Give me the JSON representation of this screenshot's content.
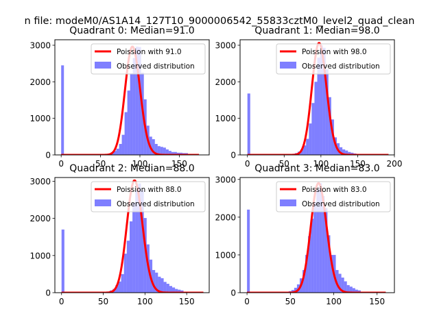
{
  "figure": {
    "suptitle": "n file: modeM0/AS1A14_127T10_9000006542_55833cztM0_level2_quad_clean",
    "colors": {
      "histogram": "#0000ff",
      "poisson_line": "#ff0000",
      "axes": "#000000",
      "background": "#ffffff"
    }
  },
  "chart_data": [
    {
      "type": "bar",
      "title": "Quadrant 0: Median=91.0",
      "xlabel": "",
      "ylabel": "",
      "xlim": [
        -8,
        188
      ],
      "ylim": [
        0,
        3150
      ],
      "xticks": [
        0,
        50,
        100,
        150
      ],
      "yticks": [
        0,
        1000,
        2000,
        3000
      ],
      "grid": false,
      "legend_position": "top-right",
      "bin_width": 3.5,
      "series": [
        {
          "name": "Observed distribution",
          "x": [
            0,
            56,
            59.5,
            63,
            66.5,
            70,
            73.5,
            77,
            80.5,
            84,
            87.5,
            91,
            94.5,
            98,
            101.5,
            105,
            108.5,
            112,
            115.5,
            119,
            122.5,
            126,
            129.5,
            133,
            136.5,
            140,
            143.5,
            147,
            150.5,
            154,
            157.5
          ],
          "values": [
            2450,
            20,
            40,
            70,
            110,
            170,
            300,
            550,
            1170,
            1760,
            2230,
            2650,
            2960,
            2950,
            2250,
            1520,
            800,
            500,
            430,
            300,
            240,
            220,
            200,
            150,
            110,
            80,
            80,
            60,
            60,
            50,
            50
          ]
        },
        {
          "name": "Poission with 91.0",
          "kind": "poisson",
          "lambda": 91.0,
          "amplitude": 2960,
          "x_range": [
            0,
            175
          ]
        }
      ]
    },
    {
      "type": "bar",
      "title": "Quadrant 1: Median=98.0",
      "xlabel": "",
      "ylabel": "",
      "xlim": [
        -10,
        200
      ],
      "ylim": [
        0,
        3150
      ],
      "xticks": [
        0,
        50,
        100,
        150,
        200
      ],
      "yticks": [
        0,
        1000,
        2000,
        3000
      ],
      "grid": false,
      "legend_position": "top-right",
      "bin_width": 3.8,
      "series": [
        {
          "name": "Observed distribution",
          "x": [
            0,
            60.8,
            64.6,
            68.4,
            72.2,
            76,
            79.8,
            83.6,
            87.4,
            91.2,
            95,
            98.8,
            102.6,
            106.4,
            110.2,
            114,
            117.8,
            121.6,
            125.4,
            129.2,
            133,
            136.8,
            140.6,
            144.4
          ],
          "values": [
            1680,
            30,
            50,
            90,
            150,
            260,
            440,
            860,
            1420,
            2000,
            2660,
            3000,
            2930,
            2340,
            1580,
            970,
            480,
            320,
            210,
            150,
            120,
            80,
            60,
            40
          ]
        },
        {
          "name": "Poission with 98.0",
          "kind": "poisson",
          "lambda": 98.0,
          "amplitude": 3060,
          "x_range": [
            0,
            192
          ]
        }
      ]
    },
    {
      "type": "bar",
      "title": "Quadrant 2: Median=88.0",
      "xlabel": "",
      "ylabel": "",
      "xlim": [
        -8,
        177
      ],
      "ylim": [
        0,
        3100
      ],
      "xticks": [
        0,
        50,
        100,
        150
      ],
      "yticks": [
        0,
        1000,
        2000,
        3000
      ],
      "grid": false,
      "legend_position": "top-right",
      "bin_width": 3.4,
      "series": [
        {
          "name": "Observed distribution",
          "x": [
            0,
            54.4,
            57.8,
            61.2,
            64.6,
            68,
            71.4,
            74.8,
            78.2,
            81.6,
            85,
            88.4,
            91.8,
            95.2,
            98.6,
            102,
            105.4,
            108.8,
            112.2,
            115.6,
            119,
            122.4,
            125.8,
            129.2,
            132.6,
            136,
            139.4,
            142.8
          ],
          "values": [
            1700,
            30,
            60,
            100,
            200,
            300,
            500,
            1050,
            1400,
            1920,
            2420,
            2750,
            2940,
            2760,
            2010,
            1300,
            890,
            610,
            540,
            430,
            390,
            290,
            240,
            180,
            140,
            100,
            80,
            60
          ]
        },
        {
          "name": "Poission with 88.0",
          "kind": "poisson",
          "lambda": 88.0,
          "amplitude": 3020,
          "x_range": [
            0,
            170
          ]
        }
      ]
    },
    {
      "type": "bar",
      "title": "Quadrant 3: Median=83.0",
      "xlabel": "",
      "ylabel": "",
      "xlim": [
        -8,
        170
      ],
      "ylim": [
        0,
        3050
      ],
      "xticks": [
        0,
        50,
        100,
        150
      ],
      "yticks": [
        0,
        1000,
        2000,
        3000
      ],
      "grid": false,
      "legend_position": "top-right",
      "bin_width": 3.2,
      "series": [
        {
          "name": "Observed distribution",
          "x": [
            0,
            48,
            51.2,
            54.4,
            57.6,
            60.8,
            64,
            67.2,
            70.4,
            73.6,
            76.8,
            80,
            83.2,
            86.4,
            89.6,
            92.8,
            96,
            99.2,
            102.4,
            105.6,
            108.8,
            112,
            115.2,
            118.4,
            121.6,
            124.8,
            128
          ],
          "values": [
            2200,
            40,
            70,
            130,
            220,
            380,
            600,
            1000,
            1500,
            1960,
            2400,
            2730,
            2900,
            2560,
            2240,
            1520,
            1000,
            1000,
            600,
            500,
            400,
            300,
            200,
            160,
            120,
            80,
            60
          ]
        },
        {
          "name": "Poission with 83.0",
          "kind": "poisson",
          "lambda": 83.0,
          "amplitude": 2900,
          "x_range": [
            0,
            160
          ]
        }
      ]
    }
  ]
}
